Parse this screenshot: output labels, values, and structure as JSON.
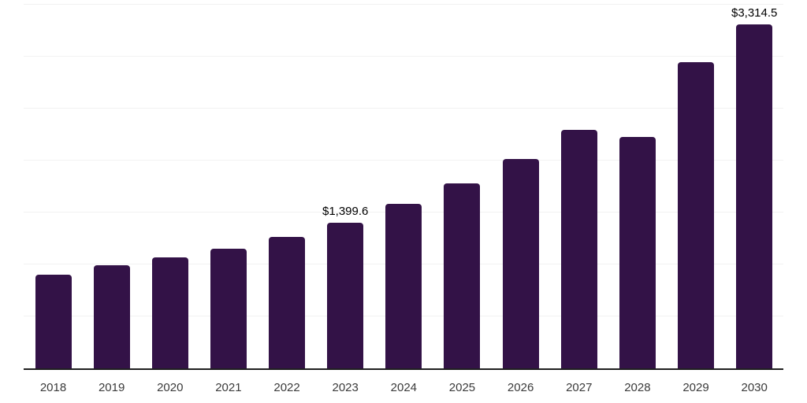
{
  "chart_data": {
    "type": "bar",
    "title": "",
    "xlabel": "",
    "ylabel": "",
    "categories": [
      "2018",
      "2019",
      "2020",
      "2021",
      "2022",
      "2023",
      "2024",
      "2025",
      "2026",
      "2027",
      "2028",
      "2029",
      "2030"
    ],
    "values": [
      898.0,
      996.0,
      1067.0,
      1154.0,
      1267.0,
      1399.6,
      1584.0,
      1780.0,
      2014.0,
      2293.0,
      2225.0,
      2949.0,
      3314.5
    ],
    "bar_labels": [
      "",
      "",
      "",
      "",
      "",
      "$1,399.6",
      "",
      "",
      "",
      "",
      "",
      "",
      "$3,314.5"
    ],
    "ylim": [
      0,
      3500
    ],
    "gridline_step": 500,
    "grid": true,
    "legend": "none",
    "colors": {
      "bar": "#331247",
      "axis": "#1f1f1f",
      "gridline": "#f2f2f2",
      "tick_label": "#3a3a3a",
      "data_label": "#000000",
      "background": "#ffffff"
    }
  }
}
